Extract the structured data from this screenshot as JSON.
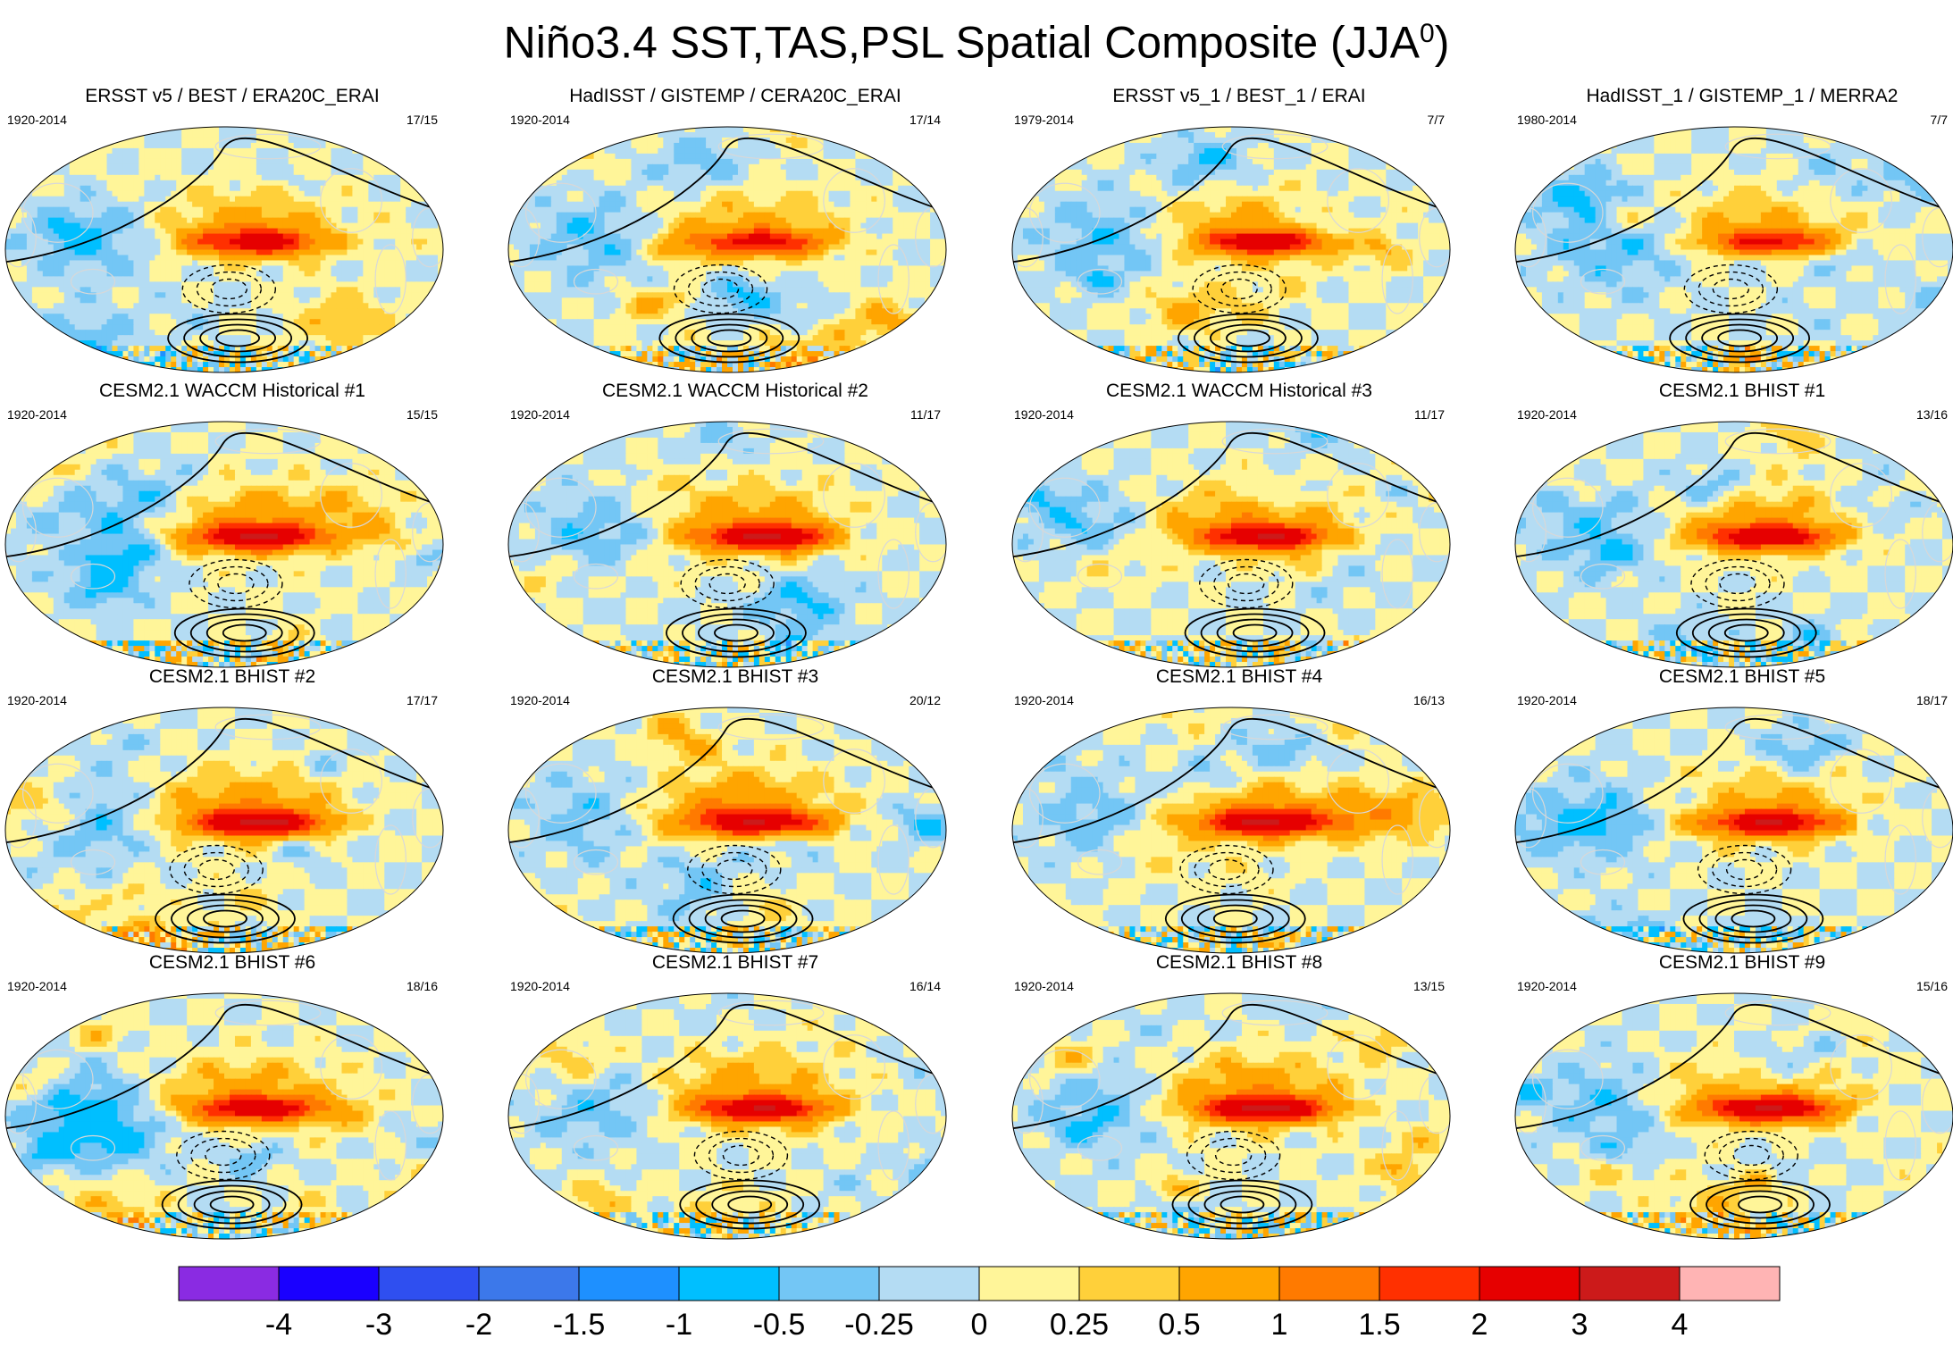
{
  "title": {
    "main": "Niño3.4 SST,TAS,PSL Spatial Composite (JJA",
    "sup": "0",
    "close": ")"
  },
  "panels": [
    {
      "title": "ERSST v5 / BEST / ERA20C_ERAI",
      "years": "1920-2014",
      "count": "17/15",
      "amp": 0.85,
      "variant": 1
    },
    {
      "title": "HadISST / GISTEMP / CERA20C_ERAI",
      "years": "1920-2014",
      "count": "17/14",
      "amp": 0.8,
      "variant": 2
    },
    {
      "title": "ERSST v5_1 / BEST_1 / ERAI",
      "years": "1979-2014",
      "count": "7/7",
      "amp": 0.95,
      "variant": 3
    },
    {
      "title": "HadISST_1 / GISTEMP_1 / MERRA2",
      "years": "1980-2014",
      "count": "7/7",
      "amp": 0.85,
      "variant": 4
    },
    {
      "title": "CESM2.1 WACCM Historical #1",
      "years": "1920-2014",
      "count": "15/15",
      "amp": 1.1,
      "variant": 5
    },
    {
      "title": "CESM2.1 WACCM Historical #2",
      "years": "1920-2014",
      "count": "11/17",
      "amp": 1.05,
      "variant": 6
    },
    {
      "title": "CESM2.1 WACCM Historical #3",
      "years": "1920-2014",
      "count": "11/17",
      "amp": 1.05,
      "variant": 7
    },
    {
      "title": "CESM2.1 BHIST #1",
      "years": "1920-2014",
      "count": "13/16",
      "amp": 1.0,
      "variant": 8
    },
    {
      "title": "CESM2.1 BHIST #2",
      "years": "1920-2014",
      "count": "17/17",
      "amp": 1.15,
      "variant": 9
    },
    {
      "title": "CESM2.1 BHIST #3",
      "years": "1920-2014",
      "count": "20/12",
      "amp": 1.05,
      "variant": 10
    },
    {
      "title": "CESM2.1 BHIST #4",
      "years": "1920-2014",
      "count": "16/13",
      "amp": 1.1,
      "variant": 11
    },
    {
      "title": "CESM2.1 BHIST #5",
      "years": "1920-2014",
      "count": "18/17",
      "amp": 1.05,
      "variant": 12
    },
    {
      "title": "CESM2.1 BHIST #6",
      "years": "1920-2014",
      "count": "18/16",
      "amp": 0.95,
      "variant": 13
    },
    {
      "title": "CESM2.1 BHIST #7",
      "years": "1920-2014",
      "count": "16/14",
      "amp": 1.05,
      "variant": 14
    },
    {
      "title": "CESM2.1 BHIST #8",
      "years": "1920-2014",
      "count": "13/15",
      "amp": 1.15,
      "variant": 15
    },
    {
      "title": "CESM2.1 BHIST #9",
      "years": "1920-2014",
      "count": "15/16",
      "amp": 1.1,
      "variant": 16
    }
  ],
  "colorbar": {
    "colors": [
      "#8a2be2",
      "#1a00ff",
      "#2f4ff0",
      "#3c78ea",
      "#1e90ff",
      "#00bfff",
      "#73c6f5",
      "#b4dcf3",
      "#fff599",
      "#ffd03a",
      "#ffa500",
      "#ff7a00",
      "#ff3000",
      "#e60000",
      "#cc1a1a",
      "#ffb4b4"
    ],
    "labels": [
      "-4",
      "-3",
      "-2",
      "-1.5",
      "-1",
      "-0.5",
      "-0.25",
      "0",
      "0.25",
      "0.5",
      "1",
      "1.5",
      "2",
      "3",
      "4"
    ],
    "levels": [
      -4,
      -3,
      -2,
      -1.5,
      -1,
      -0.5,
      -0.25,
      0,
      0.25,
      0.5,
      1,
      1.5,
      2,
      3,
      4
    ]
  }
}
